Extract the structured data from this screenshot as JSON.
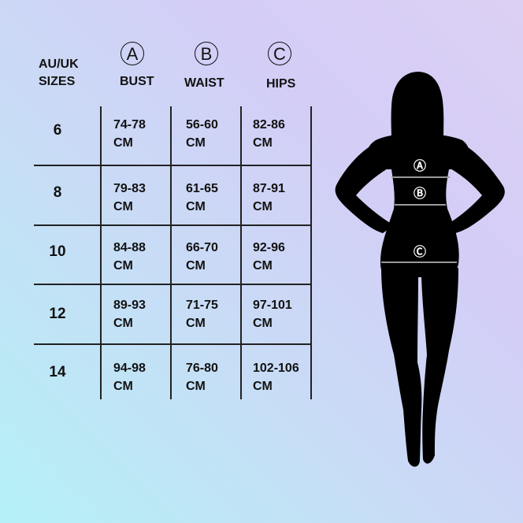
{
  "header": {
    "sizes_label": [
      "AU/UK",
      "SIZES"
    ],
    "columns": [
      {
        "marker": "A",
        "label": "BUST"
      },
      {
        "marker": "B",
        "label": "WAIST"
      },
      {
        "marker": "C",
        "label": "HIPS"
      }
    ]
  },
  "rows": [
    {
      "size": "6",
      "bust": [
        "74-78",
        "CM"
      ],
      "waist": [
        "56-60",
        "CM"
      ],
      "hips": [
        "82-86",
        "CM"
      ]
    },
    {
      "size": "8",
      "bust": [
        "79-83",
        "CM"
      ],
      "waist": [
        "61-65",
        "CM"
      ],
      "hips": [
        "87-91",
        "CM"
      ]
    },
    {
      "size": "10",
      "bust": [
        "84-88",
        "CM"
      ],
      "waist": [
        "66-70",
        "CM"
      ],
      "hips": [
        "92-96",
        "CM"
      ]
    },
    {
      "size": "12",
      "bust": [
        "89-93",
        "CM"
      ],
      "waist": [
        "71-75",
        "CM"
      ],
      "hips": [
        "97-101",
        "CM"
      ]
    },
    {
      "size": "14",
      "bust": [
        "94-98",
        "CM"
      ],
      "waist": [
        "76-80",
        "CM"
      ],
      "hips": [
        "102-106",
        "CM"
      ]
    }
  ],
  "figure": {
    "markers": [
      "Ⓐ",
      "Ⓑ",
      "Ⓒ"
    ],
    "silhouette_color": "#000000",
    "line_color": "#9a9a9a"
  }
}
